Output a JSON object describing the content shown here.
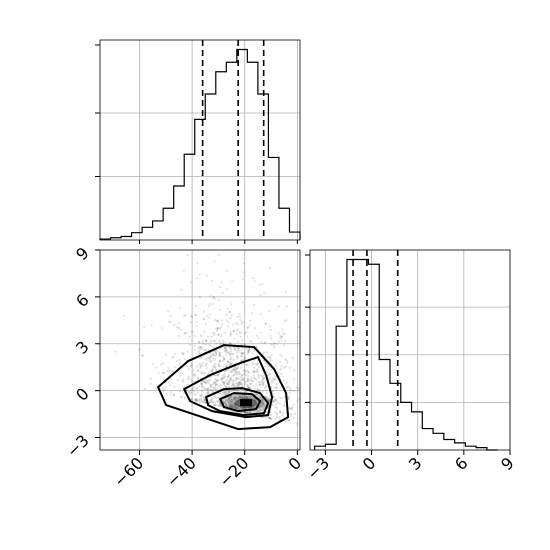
{
  "chart_data": [
    {
      "type": "histogram",
      "panel": "marginal-top",
      "bin_edges": [
        -75,
        -71,
        -67,
        -63,
        -59,
        -55,
        -51,
        -47,
        -43,
        -39,
        -35,
        -31,
        -27,
        -23,
        -19,
        -15,
        -11,
        -7,
        -3,
        1
      ],
      "counts": [
        0.3,
        0.7,
        1.1,
        2.3,
        4.0,
        6.0,
        10.0,
        17.0,
        27.0,
        38.0,
        46.0,
        53.0,
        56.0,
        60.0,
        56.0,
        46.0,
        26.0,
        10.0,
        2.5
      ],
      "ylim": [
        0,
        63
      ],
      "xlim": [
        -75,
        1
      ],
      "quantile_lines": [
        -36,
        -22.5,
        -12.8
      ],
      "y_tick_values": [
        20,
        40
      ],
      "show_y_tick_labels": false,
      "grid": true
    },
    {
      "type": "contour",
      "panel": "joint",
      "xlim": [
        -75,
        1
      ],
      "ylim": [
        -3.8,
        9.0
      ],
      "x_ticks": [
        -60,
        -40,
        -20,
        0
      ],
      "x_tick_labels": [
        "−60",
        "−40",
        "−20",
        "0"
      ],
      "y_ticks": [
        -3,
        0,
        3,
        6,
        9
      ],
      "y_tick_labels": [
        "−3",
        "0",
        "3",
        "6",
        "9"
      ],
      "density_peak": {
        "x": -19.5,
        "y": -0.8
      },
      "grid": true
    },
    {
      "type": "histogram",
      "panel": "marginal-right",
      "bin_edges": [
        -3.7,
        -3.0,
        -2.3,
        -1.6,
        -0.9,
        -0.2,
        0.5,
        1.2,
        1.9,
        2.6,
        3.3,
        4.0,
        4.7,
        5.4,
        6.1,
        6.8,
        7.5,
        8.2
      ],
      "counts": [
        0.8,
        1.2,
        26,
        40,
        40,
        39,
        19,
        14,
        10,
        8,
        4.5,
        3.5,
        2.2,
        1.5,
        0.8,
        0.5,
        0
      ],
      "ylim": [
        0,
        42
      ],
      "xlim": [
        -4.0,
        9.0
      ],
      "quantile_lines": [
        -1.2,
        -0.3,
        1.7
      ],
      "x_ticks": [
        -3,
        0,
        3,
        6,
        9
      ],
      "x_tick_labels": [
        "−3",
        "0",
        "3",
        "6",
        "9"
      ],
      "y_tick_values": [
        10,
        20,
        30
      ],
      "show_y_tick_labels": false,
      "grid": true
    }
  ]
}
